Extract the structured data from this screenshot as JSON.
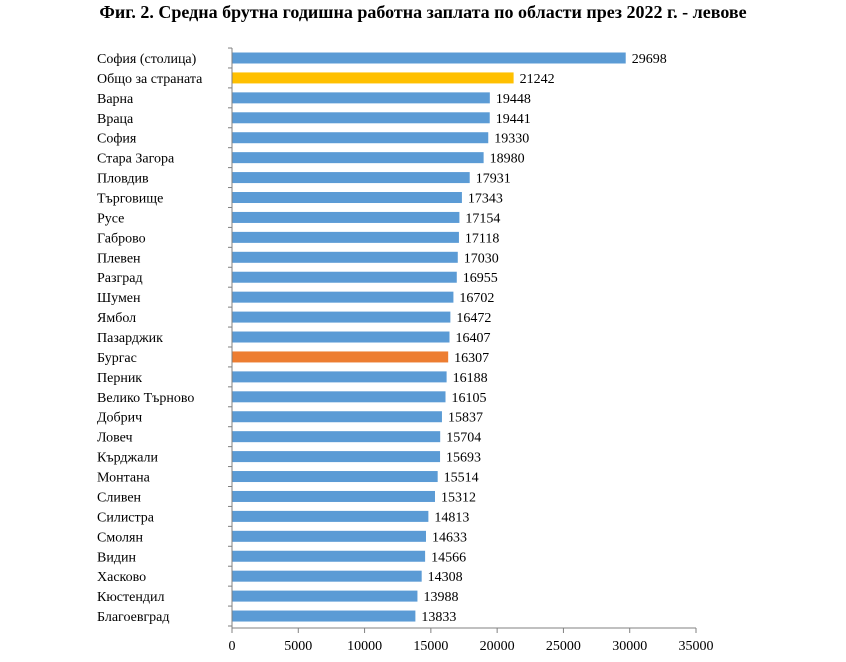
{
  "chart_data": {
    "type": "bar",
    "orientation": "horizontal",
    "title": "Фиг. 2. Средна брутна годишна работна заплата по области през 2022 г. - левове",
    "categories": [
      "София (столица)",
      "Общо за страната",
      "Варна",
      "Враца",
      "София",
      "Стара Загора",
      "Пловдив",
      "Търговище",
      "Русе",
      "Габрово",
      "Плевен",
      "Разград",
      "Шумен",
      "Ямбол",
      "Пазарджик",
      "Бургас",
      "Перник",
      "Велико Търново",
      "Добрич",
      "Ловеч",
      "Кърджали",
      "Монтана",
      "Сливен",
      "Силистра",
      "Смолян",
      "Видин",
      "Хасково",
      "Кюстендил",
      "Благоевград"
    ],
    "values": [
      29698,
      21242,
      19448,
      19441,
      19330,
      18980,
      17931,
      17343,
      17154,
      17118,
      17030,
      16955,
      16702,
      16472,
      16407,
      16307,
      16188,
      16105,
      15837,
      15704,
      15693,
      15514,
      15312,
      14813,
      14633,
      14566,
      14308,
      13988,
      13833
    ],
    "value_labels": [
      "29698",
      "21242",
      "19448",
      "19441",
      "19330",
      "18980",
      "17931",
      "17343",
      "17154",
      "17118",
      "17030",
      "16955",
      "16702",
      "16472",
      "16407",
      "16307",
      "16188",
      "16105",
      "15837",
      "15704",
      "15693",
      "15514",
      "15312",
      "14813",
      "14633",
      "14566",
      "14308",
      "13988",
      "13833"
    ],
    "xlim": [
      0,
      35000
    ],
    "xticks": [
      0,
      5000,
      10000,
      15000,
      20000,
      25000,
      30000,
      35000
    ],
    "xtick_labels": [
      "0",
      "5000",
      "10000",
      "15000",
      "20000",
      "25000",
      "30000",
      "35000"
    ],
    "grid": false,
    "colors": {
      "default": "#5b9bd5",
      "Общо за страната": "#ffc000",
      "Бургас": "#ed7d31"
    }
  }
}
